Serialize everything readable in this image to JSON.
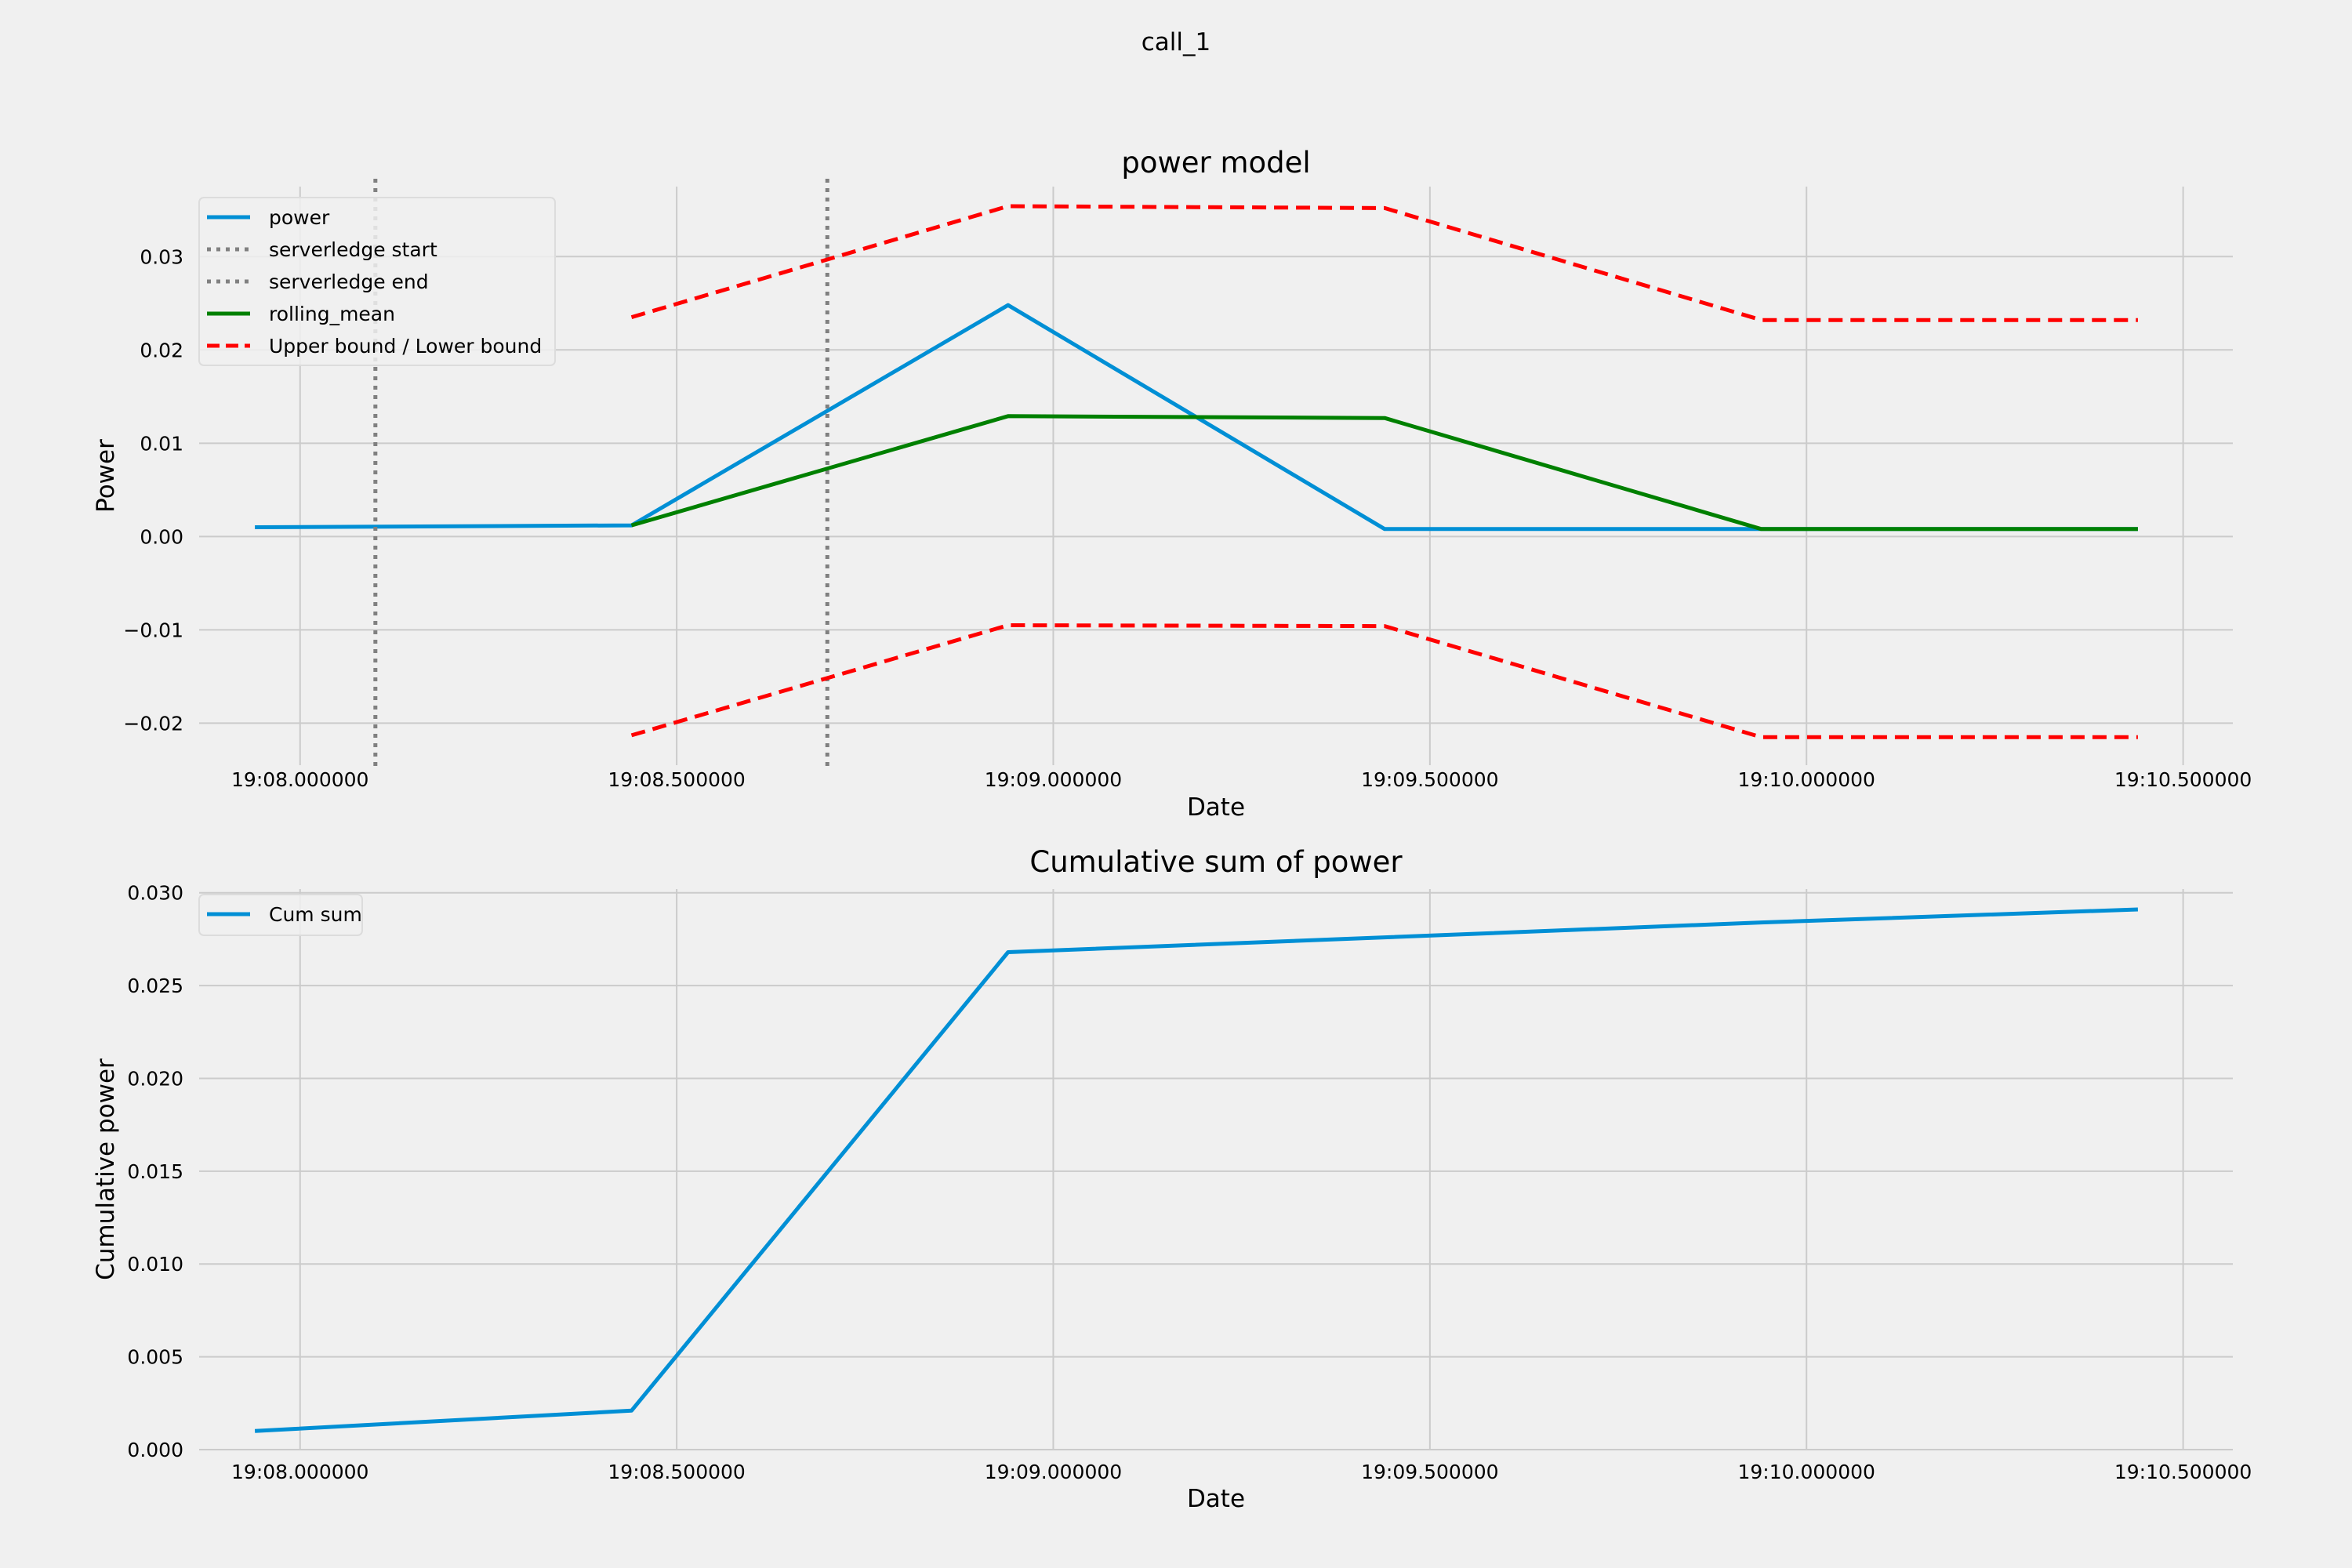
{
  "figure": {
    "suptitle": "call_1",
    "background": "#f0f0f0"
  },
  "chart_data": [
    {
      "type": "line",
      "title": "power model",
      "xlabel": "Date",
      "ylabel": "Power",
      "xlim": [
        "19:07.866",
        "19:10.566"
      ],
      "ylim": [
        -0.0245,
        0.0375
      ],
      "grid": true,
      "legend": "top-left",
      "x_ticks": [
        "19:08.000000",
        "19:08.500000",
        "19:09.000000",
        "19:09.500000",
        "19:10.000000",
        "19:10.500000"
      ],
      "y_ticks": [
        {
          "value": 0.03,
          "label": "0.03"
        },
        {
          "value": 0.02,
          "label": "0.02"
        },
        {
          "value": 0.01,
          "label": "0.01"
        },
        {
          "value": 0.0,
          "label": "0.00"
        },
        {
          "value": -0.01,
          "label": "−0.01"
        },
        {
          "value": -0.02,
          "label": "−0.02"
        }
      ],
      "series": [
        {
          "name": "power",
          "color": "#008fd5",
          "style": "solid",
          "x": [
            "19:07.94",
            "19:08.44",
            "19:08.94",
            "19:09.44",
            "19:09.94",
            "19:10.44"
          ],
          "y": [
            0.001,
            0.0012,
            0.0248,
            0.0008,
            0.0008,
            0.0008
          ]
        },
        {
          "name": "serverledge start",
          "color": "#808080",
          "style": "dotted",
          "vline": "19:08.10"
        },
        {
          "name": "serverledge end",
          "color": "#808080",
          "style": "dotted",
          "vline": "19:08.70"
        },
        {
          "name": "rolling_mean",
          "color": "#008000",
          "style": "solid",
          "x": [
            "19:08.44",
            "19:08.94",
            "19:09.44",
            "19:09.94",
            "19:10.44"
          ],
          "y": [
            0.0012,
            0.0129,
            0.0127,
            0.0008,
            0.0008
          ]
        },
        {
          "name": "Upper bound / Lower bound",
          "color": "#ff0000",
          "style": "dashed",
          "x": [
            "19:08.44",
            "19:08.94",
            "19:09.44",
            "19:09.94",
            "19:10.44"
          ],
          "y": [
            0.0235,
            0.0354,
            0.0352,
            0.0232,
            0.0232
          ],
          "lower_y": [
            -0.0213,
            -0.0095,
            -0.0096,
            -0.0215,
            -0.0215
          ]
        }
      ]
    },
    {
      "type": "line",
      "title": "Cumulative sum of power",
      "xlabel": "Date",
      "ylabel": "Cumulative power",
      "xlim": [
        "19:07.866",
        "19:10.566"
      ],
      "ylim": [
        0.0,
        0.0302
      ],
      "grid": true,
      "legend": "top-left",
      "x_ticks": [
        "19:08.000000",
        "19:08.500000",
        "19:09.000000",
        "19:09.500000",
        "19:10.000000",
        "19:10.500000"
      ],
      "y_ticks": [
        {
          "value": 0.03,
          "label": "0.030"
        },
        {
          "value": 0.025,
          "label": "0.025"
        },
        {
          "value": 0.02,
          "label": "0.020"
        },
        {
          "value": 0.015,
          "label": "0.015"
        },
        {
          "value": 0.01,
          "label": "0.010"
        },
        {
          "value": 0.005,
          "label": "0.005"
        },
        {
          "value": 0.0,
          "label": "0.000"
        }
      ],
      "series": [
        {
          "name": "Cum sum",
          "color": "#008fd5",
          "style": "solid",
          "x": [
            "19:07.94",
            "19:08.44",
            "19:08.94",
            "19:09.44",
            "19:09.94",
            "19:10.44"
          ],
          "y": [
            0.001,
            0.0021,
            0.0268,
            0.0276,
            0.0284,
            0.0291
          ]
        }
      ]
    }
  ]
}
